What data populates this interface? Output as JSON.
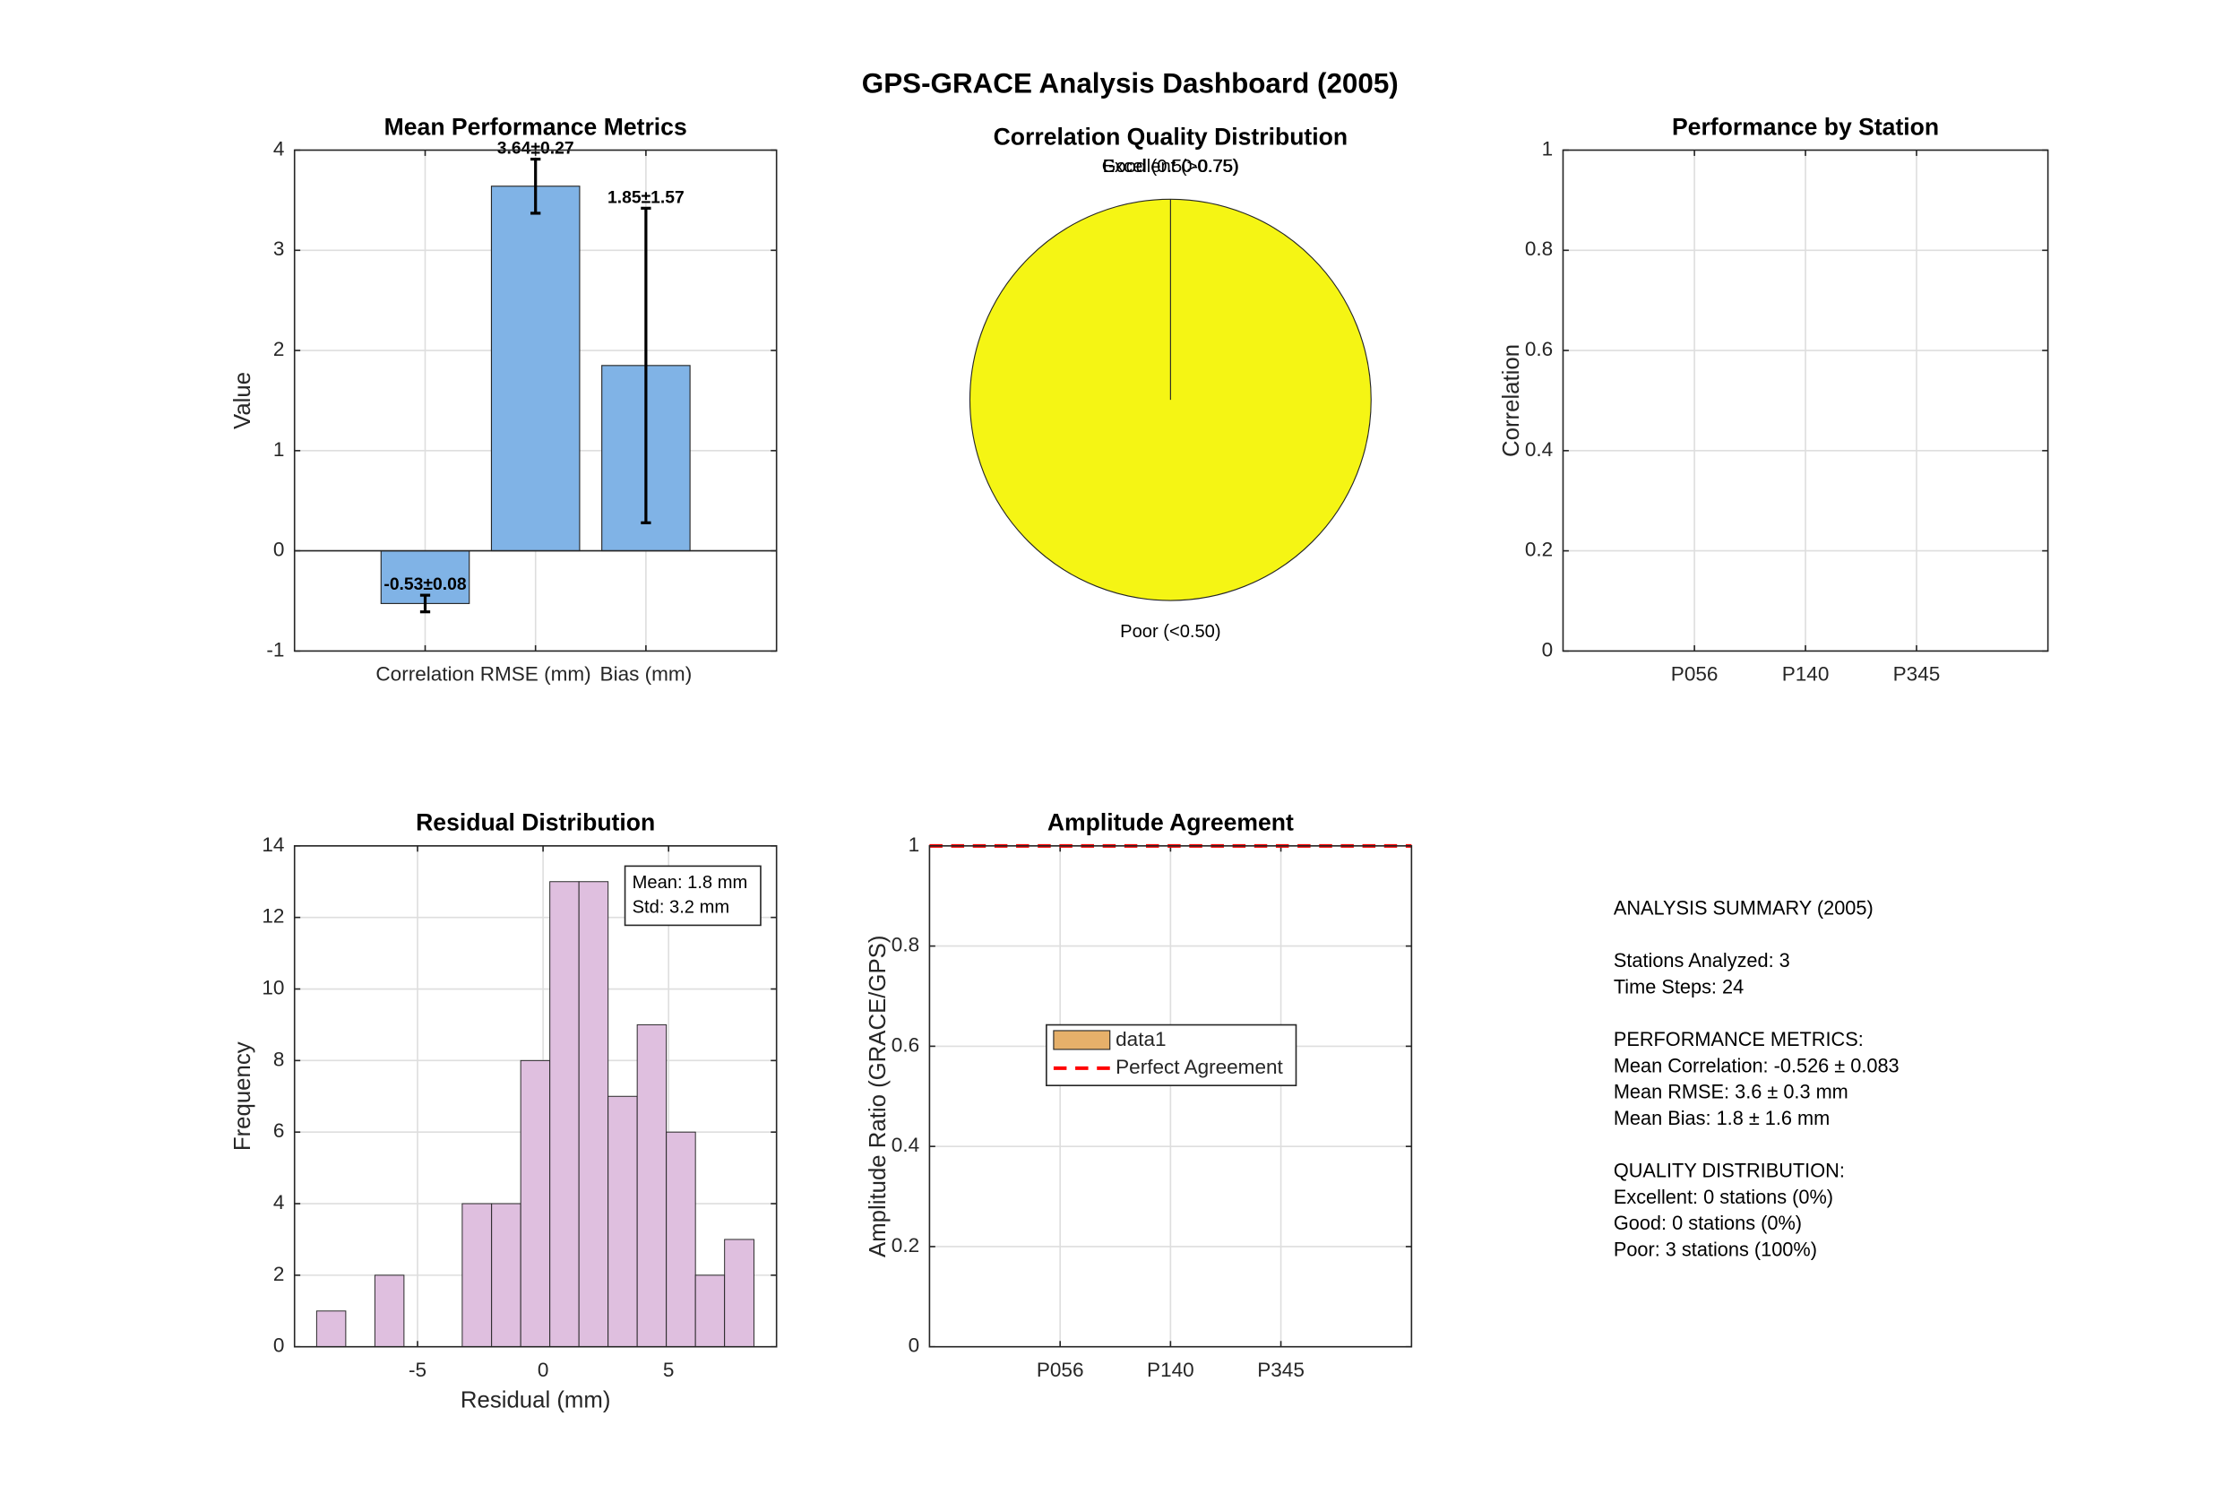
{
  "title": "GPS-GRACE Analysis Dashboard (2005)",
  "chart_data": [
    {
      "type": "bar",
      "title": "Mean Performance Metrics",
      "ylabel": "Value",
      "categories": [
        "Correlation",
        "RMSE (mm)",
        "Bias (mm)"
      ],
      "values": [
        -0.526,
        3.64,
        1.85
      ],
      "errors": [
        0.083,
        0.27,
        1.57
      ],
      "value_labels": [
        "-0.53±0.08",
        "3.64±0.27",
        "1.85±1.57"
      ],
      "color": "#80b3e6",
      "ylim": [
        -1,
        4
      ],
      "yticks": [
        -1,
        0,
        1,
        2,
        3,
        4
      ],
      "grid": true
    },
    {
      "type": "pie",
      "title": "Correlation Quality Distribution",
      "categories": [
        "Excellent (>0.75)",
        "Good (0.50-0.75)",
        "Poor (<0.50)"
      ],
      "values": [
        0,
        0,
        3
      ],
      "colors": [
        "#1f1fd0",
        "#21b5a4",
        "#f5f514"
      ]
    },
    {
      "type": "bar",
      "title": "Performance by Station",
      "ylabel": "Correlation",
      "categories": [
        "P056",
        "P140",
        "P345"
      ],
      "ylim": [
        0,
        1
      ],
      "yticks": [
        0,
        0.2,
        0.4,
        0.6,
        0.8,
        1
      ],
      "grid": true
    },
    {
      "type": "histogram",
      "title": "Residual Distribution",
      "xlabel": "Residual (mm)",
      "ylabel": "Frequency",
      "bins": [
        -9.02,
        -7.86,
        -6.7,
        -5.54,
        -4.38,
        -3.22,
        -2.05,
        -0.89,
        0.27,
        1.43,
        2.59,
        3.75,
        4.91,
        6.07,
        7.23,
        8.4
      ],
      "values": [
        1,
        0,
        2,
        0,
        0,
        4,
        4,
        8,
        13,
        13,
        7,
        9,
        6,
        2,
        3
      ],
      "color": "#dfbfdf",
      "xlim": [
        -9.9,
        9.3
      ],
      "xticks": [
        -5,
        0,
        5
      ],
      "ylim": [
        0,
        14
      ],
      "yticks": [
        0,
        2,
        4,
        6,
        8,
        10,
        12,
        14
      ],
      "grid": true,
      "annotation": [
        "Mean: 1.8 mm",
        "Std: 3.2 mm"
      ]
    },
    {
      "type": "bar",
      "title": "Amplitude Agreement",
      "ylabel": "Amplitude Ratio (GRACE/GPS)",
      "categories": [
        "P056",
        "P140",
        "P345"
      ],
      "series": [
        {
          "name": "data1",
          "color": "#e6b06a"
        }
      ],
      "reference_line": {
        "name": "Perfect Agreement",
        "color": "#ff0000",
        "value": 1
      },
      "ylim": [
        0,
        1
      ],
      "yticks": [
        0,
        0.2,
        0.4,
        0.6,
        0.8,
        1
      ],
      "grid": true
    }
  ],
  "summary": [
    [
      "ANALYSIS SUMMARY (2005)"
    ],
    [
      "Stations Analyzed: 3",
      "Time Steps: 24"
    ],
    [
      "PERFORMANCE METRICS:",
      "Mean Correlation: -0.526 ± 0.083",
      "Mean RMSE: 3.6 ± 0.3 mm",
      "Mean Bias: 1.8 ± 1.6 mm"
    ],
    [
      "QUALITY DISTRIBUTION:",
      "Excellent: 0 stations (0%)",
      "Good: 0 stations (0%)",
      "Poor: 3 stations (100%)"
    ]
  ]
}
